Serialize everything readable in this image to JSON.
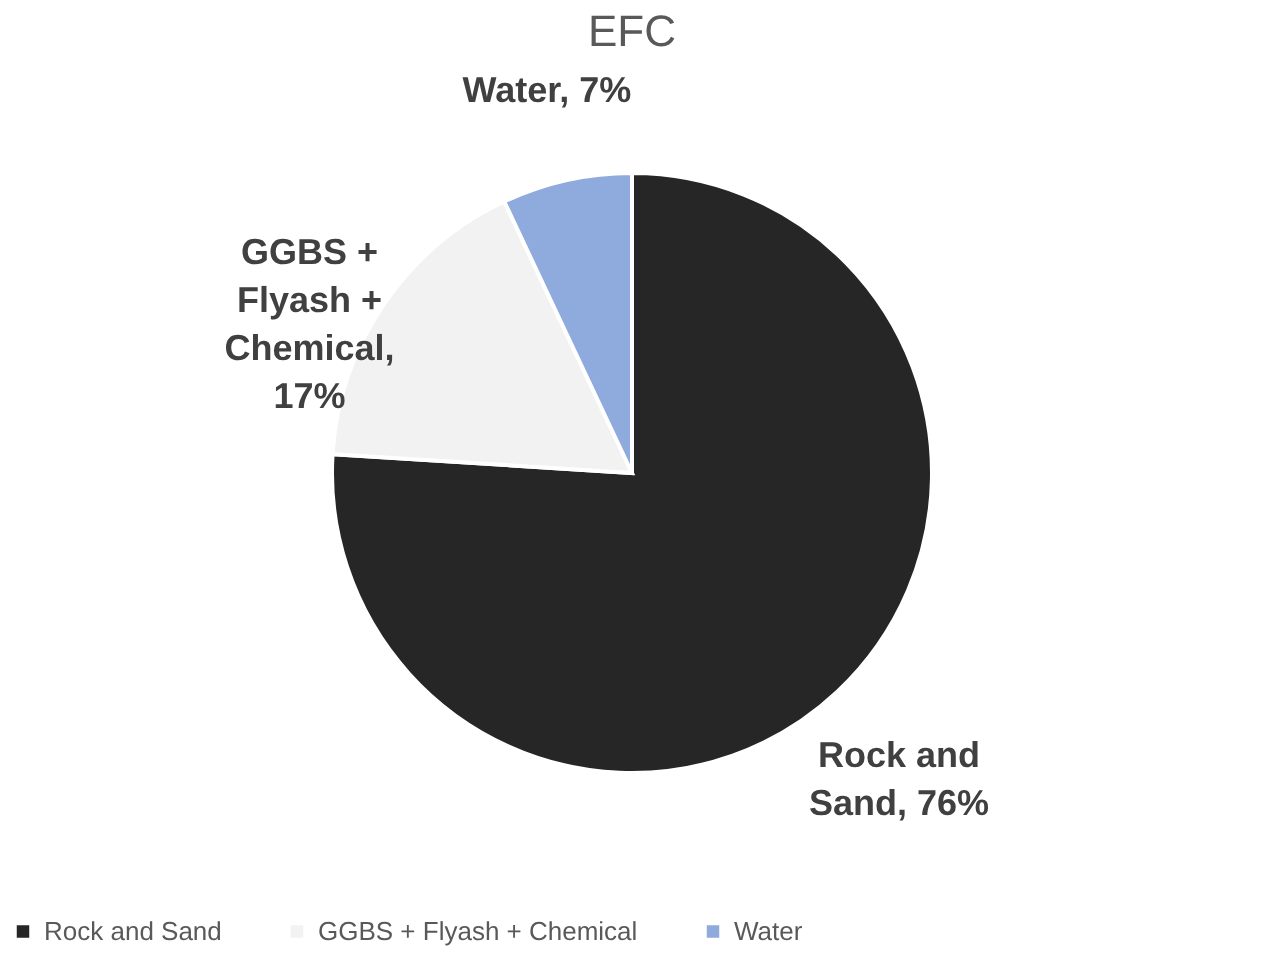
{
  "chart_data": {
    "type": "pie",
    "title": "EFC",
    "categories": [
      "Rock and Sand",
      "GGBS + Flyash + Chemical",
      "Water"
    ],
    "values": [
      76,
      17,
      7
    ],
    "colors": [
      "#262626",
      "#f2f2f2",
      "#8faadc"
    ],
    "value_labels": [
      "Rock and Sand, 76%",
      "GGBS + Flyash + Chemical, 17%",
      "Water, 7%"
    ],
    "legend": "bottom"
  }
}
